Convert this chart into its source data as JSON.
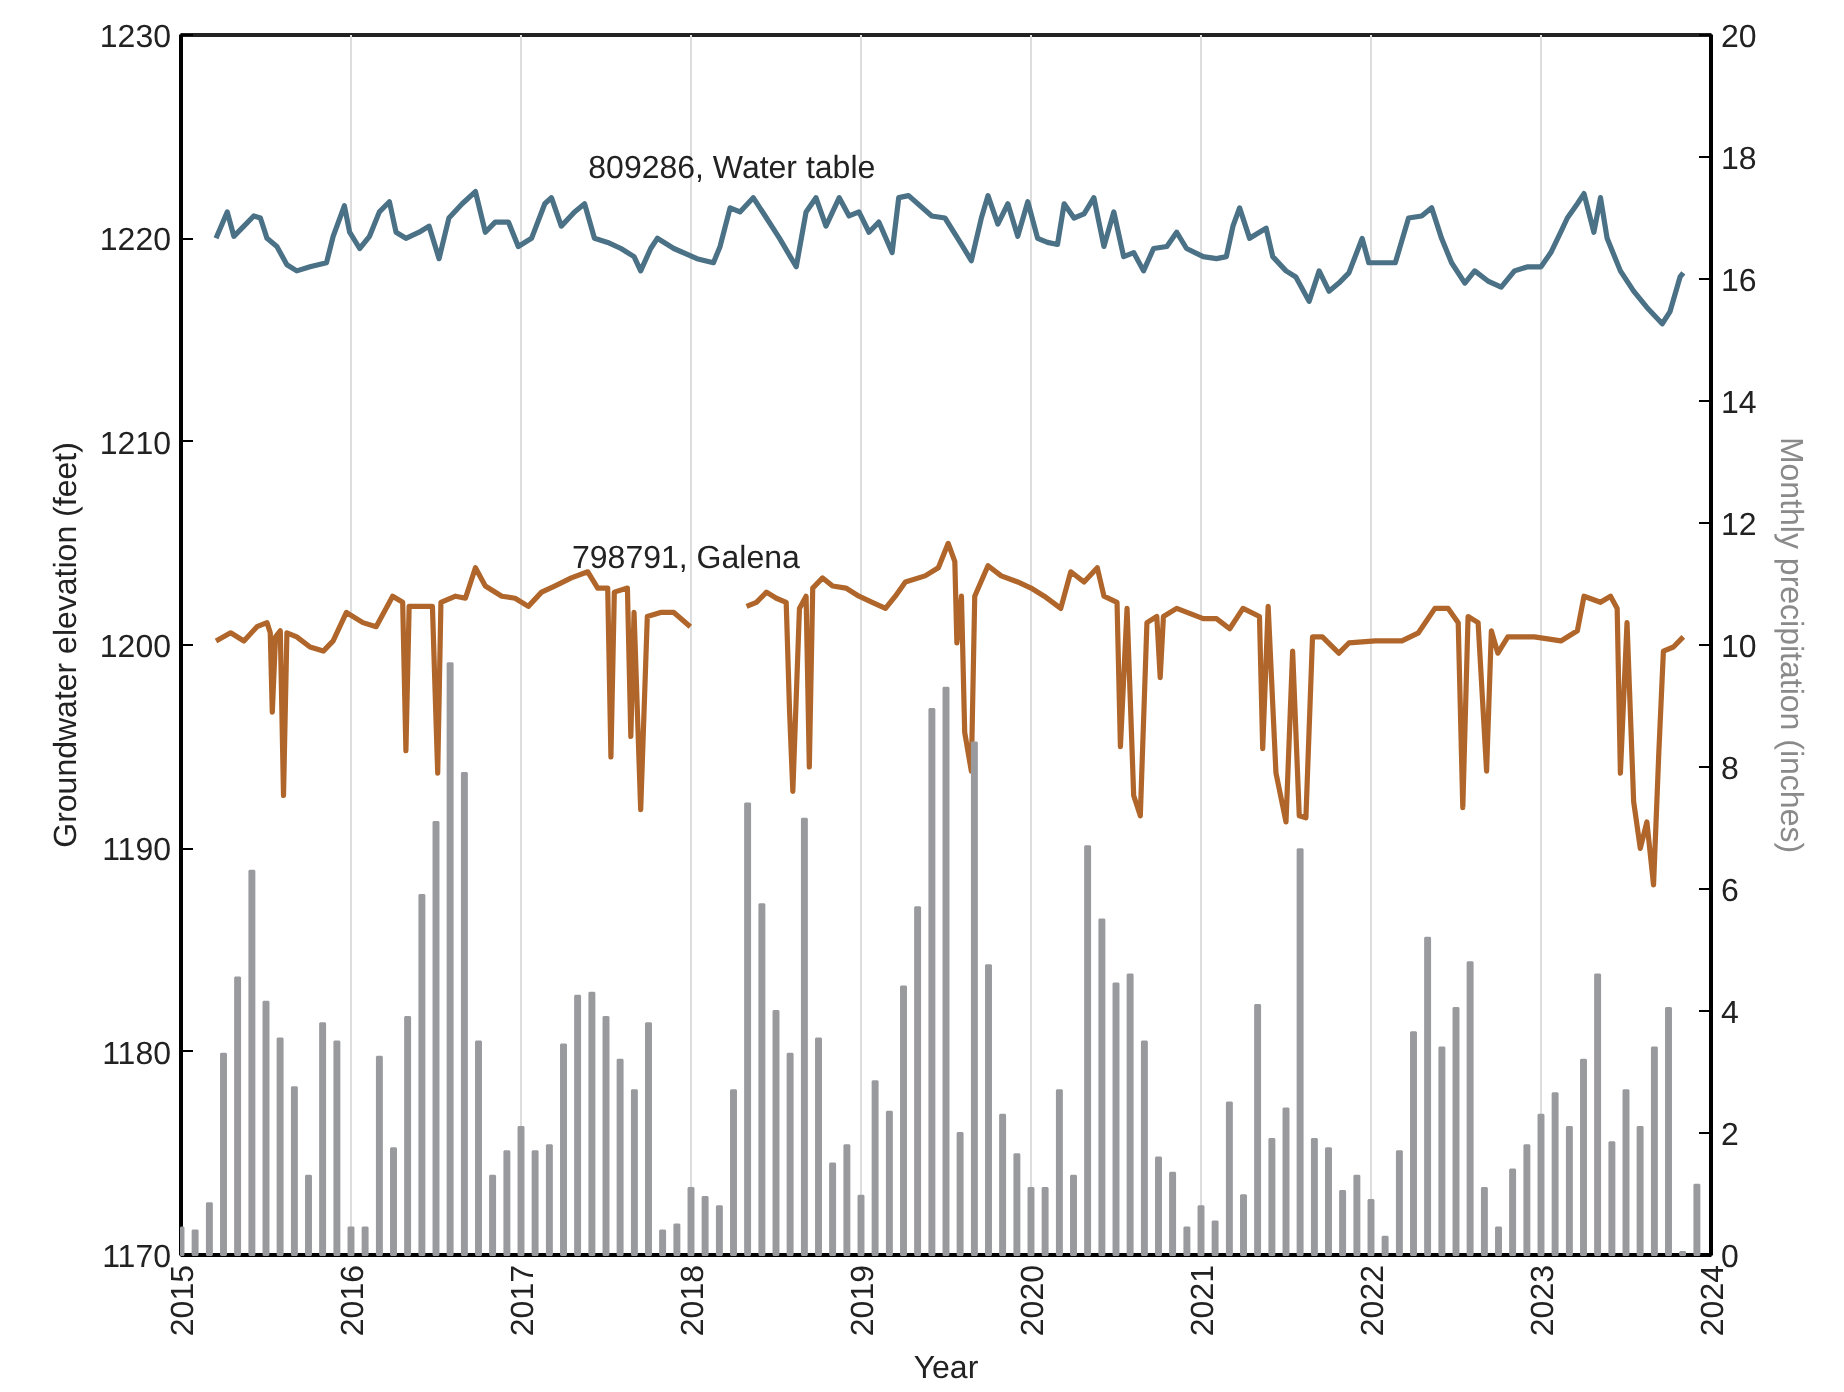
{
  "chart_data": {
    "type": "line",
    "xlabel": "Year",
    "ylabel": "Groundwater elevation (feet)",
    "y2label": "Monthly precipitation (inches)",
    "xlim": [
      2015,
      2024
    ],
    "xticks": [
      2015,
      2016,
      2017,
      2018,
      2019,
      2020,
      2021,
      2022,
      2023,
      2024
    ],
    "ylim": [
      1170,
      1230
    ],
    "yticks": [
      1170,
      1180,
      1190,
      1200,
      1210,
      1220,
      1230
    ],
    "y2lim": [
      0,
      20
    ],
    "y2ticks": [
      0,
      2,
      4,
      6,
      8,
      10,
      12,
      14,
      16,
      18,
      20
    ],
    "grid": "x",
    "marker": "none",
    "line_style": "solid",
    "series": [
      {
        "type": "bar",
        "axis": "y2",
        "color": "#999a9e",
        "x": [
          2015.0,
          2015.083,
          2015.167,
          2015.25,
          2015.333,
          2015.417,
          2015.5,
          2015.583,
          2015.667,
          2015.75,
          2015.833,
          2015.917,
          2016.0,
          2016.083,
          2016.167,
          2016.25,
          2016.333,
          2016.417,
          2016.5,
          2016.583,
          2016.667,
          2016.75,
          2016.833,
          2016.917,
          2017.0,
          2017.083,
          2017.167,
          2017.25,
          2017.333,
          2017.417,
          2017.5,
          2017.583,
          2017.667,
          2017.75,
          2017.833,
          2017.917,
          2018.0,
          2018.083,
          2018.167,
          2018.25,
          2018.333,
          2018.417,
          2018.5,
          2018.583,
          2018.667,
          2018.75,
          2018.833,
          2018.917,
          2019.0,
          2019.083,
          2019.167,
          2019.25,
          2019.333,
          2019.417,
          2019.5,
          2019.583,
          2019.667,
          2019.75,
          2019.833,
          2019.917,
          2020.0,
          2020.083,
          2020.167,
          2020.25,
          2020.333,
          2020.417,
          2020.5,
          2020.583,
          2020.667,
          2020.75,
          2020.833,
          2020.917,
          2021.0,
          2021.083,
          2021.167,
          2021.25,
          2021.333,
          2021.417,
          2021.5,
          2021.583,
          2021.667,
          2021.75,
          2021.833,
          2021.917,
          2022.0,
          2022.083,
          2022.167,
          2022.25,
          2022.333,
          2022.417,
          2022.5,
          2022.583,
          2022.667,
          2022.75,
          2022.833,
          2022.917,
          2023.0,
          2023.083,
          2023.167,
          2023.25,
          2023.333,
          2023.417,
          2023.5,
          2023.583,
          2023.667,
          2023.75,
          2023.833,
          2023.917
        ],
        "values": [
          0.45,
          0.4,
          0.85,
          3.3,
          4.55,
          6.3,
          4.15,
          3.55,
          2.75,
          1.3,
          3.8,
          3.5,
          0.45,
          0.45,
          3.25,
          1.75,
          3.9,
          5.9,
          7.1,
          9.7,
          7.9,
          3.5,
          1.3,
          1.7,
          2.1,
          1.7,
          1.8,
          3.45,
          4.25,
          4.3,
          3.9,
          3.2,
          2.7,
          3.8,
          0.4,
          0.5,
          1.1,
          0.95,
          0.8,
          2.7,
          7.4,
          5.75,
          4.0,
          3.3,
          7.15,
          3.55,
          1.5,
          1.8,
          0.97,
          2.85,
          2.35,
          4.4,
          5.7,
          8.95,
          9.3,
          2.0,
          8.4,
          4.75,
          2.3,
          1.65,
          1.1,
          1.1,
          2.7,
          1.3,
          6.7,
          5.5,
          4.45,
          4.6,
          3.5,
          1.6,
          1.35,
          0.45,
          0.8,
          0.55,
          2.5,
          0.98,
          4.1,
          1.9,
          2.4,
          6.65,
          1.9,
          1.75,
          1.05,
          1.3,
          0.9,
          0.3,
          1.7,
          3.65,
          5.2,
          3.4,
          4.05,
          4.8,
          1.1,
          0.45,
          1.4,
          1.8,
          2.3,
          2.65,
          2.1,
          3.2,
          4.6,
          1.85,
          2.7,
          2.1,
          3.4,
          4.05,
          0.05,
          1.15
        ]
      },
      {
        "name": "809286, Water table",
        "color": "#4a7186",
        "x": [
          2015.206,
          2015.272,
          2015.311,
          2015.37,
          2015.428,
          2015.467,
          2015.506,
          2015.564,
          2015.623,
          2015.681,
          2015.759,
          2015.856,
          2015.895,
          2015.961,
          2015.992,
          2016.051,
          2016.109,
          2016.167,
          2016.226,
          2016.265,
          2016.323,
          2016.401,
          2016.459,
          2016.518,
          2016.576,
          2016.654,
          2016.732,
          2016.79,
          2016.848,
          2016.926,
          2016.984,
          2017.062,
          2017.14,
          2017.179,
          2017.237,
          2017.315,
          2017.374,
          2017.432,
          2017.51,
          2017.588,
          2017.665,
          2017.704,
          2017.763,
          2017.802,
          2017.899,
          2018.035,
          2018.132,
          2018.171,
          2018.23,
          2018.288,
          2018.366,
          2018.444,
          2018.521,
          2018.619,
          2018.677,
          2018.735,
          2018.794,
          2018.872,
          2018.93,
          2018.988,
          2019.047,
          2019.105,
          2019.183,
          2019.222,
          2019.28,
          2019.416,
          2019.494,
          2019.591,
          2019.649,
          2019.708,
          2019.747,
          2019.805,
          2019.864,
          2019.922,
          2019.981,
          2020.039,
          2020.097,
          2020.156,
          2020.195,
          2020.253,
          2020.312,
          2020.37,
          2020.429,
          2020.487,
          2020.545,
          2020.604,
          2020.662,
          2020.721,
          2020.799,
          2020.857,
          2020.915,
          2021.013,
          2021.091,
          2021.149,
          2021.188,
          2021.227,
          2021.286,
          2021.344,
          2021.383,
          2021.422,
          2021.5,
          2021.558,
          2021.636,
          2021.695,
          2021.753,
          2021.811,
          2021.87,
          2021.948,
          2021.987,
          2022.065,
          2022.143,
          2022.221,
          2022.298,
          2022.357,
          2022.415,
          2022.474,
          2022.552,
          2022.61,
          2022.688,
          2022.766,
          2022.844,
          2022.922,
          2023.0,
          2023.058,
          2023.116,
          2023.155,
          2023.214,
          2023.253,
          2023.311,
          2023.35,
          2023.389,
          2023.467,
          2023.545,
          2023.623,
          2023.713,
          2023.759,
          2023.818,
          2023.837
        ],
        "values": [
          1220.0,
          1221.3,
          1220.1,
          1220.6,
          1221.1,
          1221.0,
          1220.0,
          1219.6,
          1218.7,
          1218.4,
          1218.6,
          1218.8,
          1220.1,
          1221.6,
          1220.3,
          1219.5,
          1220.1,
          1221.3,
          1221.8,
          1220.3,
          1220.0,
          1220.3,
          1220.6,
          1219.0,
          1221.0,
          1221.7,
          1222.3,
          1220.3,
          1220.8,
          1220.8,
          1219.6,
          1220.0,
          1221.7,
          1222.0,
          1220.6,
          1221.3,
          1221.7,
          1220.0,
          1219.8,
          1219.5,
          1219.1,
          1218.4,
          1219.5,
          1220.0,
          1219.5,
          1219.0,
          1218.8,
          1219.6,
          1221.5,
          1221.3,
          1222.0,
          1221.0,
          1220.0,
          1218.6,
          1221.3,
          1222.0,
          1220.6,
          1222.0,
          1221.1,
          1221.3,
          1220.3,
          1220.8,
          1219.3,
          1222.0,
          1222.1,
          1221.1,
          1221.0,
          1219.7,
          1218.9,
          1221.0,
          1222.1,
          1220.7,
          1221.7,
          1220.1,
          1221.8,
          1220.0,
          1219.8,
          1219.7,
          1221.7,
          1221.0,
          1221.2,
          1222.0,
          1219.6,
          1221.3,
          1219.1,
          1219.3,
          1218.4,
          1219.5,
          1219.6,
          1220.3,
          1219.5,
          1219.1,
          1219.0,
          1219.1,
          1220.6,
          1221.5,
          1220.0,
          1220.3,
          1220.5,
          1219.1,
          1218.4,
          1218.1,
          1216.9,
          1218.4,
          1217.4,
          1217.8,
          1218.3,
          1220.0,
          1218.8,
          1218.8,
          1218.8,
          1221.0,
          1221.1,
          1221.5,
          1220.0,
          1218.8,
          1217.8,
          1218.4,
          1217.9,
          1217.6,
          1218.4,
          1218.6,
          1218.6,
          1219.3,
          1220.3,
          1221.0,
          1221.7,
          1222.2,
          1220.3,
          1222.0,
          1220.0,
          1218.4,
          1217.4,
          1216.6,
          1215.8,
          1216.4,
          1218.1,
          1218.3
        ]
      },
      {
        "name": "798791, Galena",
        "color": "#b0662a",
        "x": [
          2015.206,
          2015.292,
          2015.37,
          2015.447,
          2015.506,
          2015.525,
          2015.537,
          2015.556,
          2015.584,
          2015.603,
          2015.623,
          2015.681,
          2015.759,
          2015.837,
          2015.895,
          2015.973,
          2016.07,
          2016.148,
          2016.245,
          2016.304,
          2016.323,
          2016.342,
          2016.42,
          2016.479,
          2016.51,
          2016.529,
          2016.615,
          2016.673,
          2016.732,
          2016.79,
          2016.887,
          2016.965,
          2017.043,
          2017.121,
          2017.198,
          2017.296,
          2017.393,
          2017.451,
          2017.51,
          2017.529,
          2017.549,
          2017.626,
          2017.646,
          2017.665,
          2017.704,
          2017.743,
          2017.821,
          2017.899,
          2017.996,
          2018.1,
          2018.327,
          2018.385,
          2018.444,
          2018.502,
          2018.56,
          2018.58,
          2018.599,
          2018.638,
          2018.677,
          2018.696,
          2018.716,
          2018.774,
          2018.833,
          2018.911,
          2018.988,
          2019.066,
          2019.144,
          2019.202,
          2019.261,
          2019.377,
          2019.455,
          2019.513,
          2019.552,
          2019.564,
          2019.591,
          2019.61,
          2019.649,
          2019.669,
          2019.747,
          2019.825,
          2019.922,
          2020.0,
          2020.078,
          2020.175,
          2020.234,
          2020.312,
          2020.39,
          2020.429,
          2020.506,
          2020.526,
          2020.565,
          2020.604,
          2020.643,
          2020.682,
          2020.74,
          2020.76,
          2020.779,
          2020.857,
          2021.013,
          2021.091,
          2021.169,
          2021.247,
          2021.344,
          2021.363,
          2021.395,
          2021.441,
          2021.5,
          2021.539,
          2021.578,
          2021.617,
          2021.656,
          2021.714,
          2021.811,
          2021.87,
          2022.026,
          2022.182,
          2022.279,
          2022.376,
          2022.454,
          2022.513,
          2022.54,
          2022.571,
          2022.63,
          2022.68,
          2022.708,
          2022.746,
          2022.805,
          2022.961,
          2023.117,
          2023.214,
          2023.253,
          2023.35,
          2023.409,
          2023.448,
          2023.467,
          2023.506,
          2023.545,
          2023.584,
          2023.623,
          2023.662,
          2023.693,
          2023.72,
          2023.779,
          2023.837
        ],
        "values": [
          1200.2,
          1200.6,
          1200.2,
          1200.9,
          1201.1,
          1200.6,
          1196.7,
          1200.4,
          1200.7,
          1192.6,
          1200.6,
          1200.4,
          1199.9,
          1199.7,
          1200.2,
          1201.6,
          1201.1,
          1200.9,
          1202.4,
          1202.1,
          1194.8,
          1201.9,
          1201.9,
          1201.9,
          1193.7,
          1202.1,
          1202.4,
          1202.3,
          1203.8,
          1202.9,
          1202.4,
          1202.3,
          1201.9,
          1202.6,
          1202.9,
          1203.3,
          1203.6,
          1202.8,
          1202.8,
          1194.5,
          1202.6,
          1202.8,
          1195.5,
          1201.6,
          1191.9,
          1201.4,
          1201.6,
          1201.6,
          1200.9,
          null,
          1201.9,
          1202.1,
          1202.6,
          1202.3,
          1202.1,
          1196.7,
          1192.8,
          1201.8,
          1202.4,
          1194.0,
          1202.8,
          1203.3,
          1202.9,
          1202.8,
          1202.4,
          1202.1,
          1201.8,
          1202.4,
          1203.1,
          1203.4,
          1203.8,
          1205.0,
          1204.1,
          1200.1,
          1202.4,
          1195.7,
          1193.8,
          1202.4,
          1203.9,
          1203.4,
          1203.1,
          1202.8,
          1202.4,
          1201.8,
          1203.6,
          1203.1,
          1203.8,
          1202.4,
          1202.1,
          1195.0,
          1201.8,
          1192.6,
          1191.6,
          1201.1,
          1201.4,
          1198.4,
          1201.4,
          1201.8,
          1201.3,
          1201.3,
          1200.8,
          1201.8,
          1201.4,
          1194.9,
          1201.9,
          1193.7,
          1191.3,
          1199.7,
          1191.6,
          1191.5,
          1200.4,
          1200.4,
          1199.6,
          1200.1,
          1200.2,
          1200.2,
          1200.6,
          1201.8,
          1201.8,
          1201.1,
          1192.0,
          1201.4,
          1201.1,
          1193.8,
          1200.7,
          1199.6,
          1200.4,
          1200.4,
          1200.2,
          1200.7,
          1202.4,
          1202.1,
          1202.4,
          1201.8,
          1193.7,
          1201.1,
          1192.3,
          1190.0,
          1191.3,
          1188.2,
          1194.7,
          1199.7,
          1199.9,
          1200.4
        ]
      }
    ]
  }
}
